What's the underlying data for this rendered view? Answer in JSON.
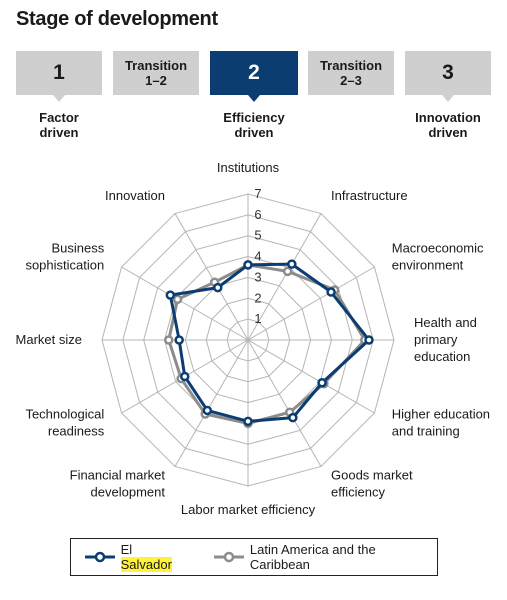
{
  "title": "Stage of development",
  "stages": {
    "s1": {
      "label": "1"
    },
    "t12": {
      "line1": "Transition",
      "line2": "1–2"
    },
    "s2": {
      "label": "2"
    },
    "t23": {
      "line1": "Transition",
      "line2": "2–3"
    },
    "s3": {
      "label": "3"
    }
  },
  "stage_labels": {
    "factor": {
      "line1": "Factor",
      "line2": "driven"
    },
    "efficiency": {
      "line1": "Efficiency",
      "line2": "driven"
    },
    "innovation": {
      "line1": "Innovation",
      "line2": "driven"
    }
  },
  "colors": {
    "active": "#0b3d73",
    "inactive": "#cfcfcf",
    "series1": "#0b3d73",
    "series2": "#8c8c8c",
    "grid": "#b5b5b5"
  },
  "legend": {
    "series1_prefix": "El ",
    "series1_highlight": "Salvador",
    "series2": "Latin America and the Caribbean"
  },
  "chart_data": {
    "type": "radar",
    "rmin": 1,
    "rmax": 7,
    "ticks": [
      "1",
      "2",
      "3",
      "4",
      "5",
      "6",
      "7"
    ],
    "axes": [
      [
        "Institutions"
      ],
      [
        "Infrastructure"
      ],
      [
        "Macroeconomic",
        "environment"
      ],
      [
        "Health and",
        "primary",
        "education"
      ],
      [
        "Higher education",
        "and training"
      ],
      [
        "Goods market",
        "efficiency"
      ],
      [
        "Labor market efficiency"
      ],
      [
        "Financial market",
        "development"
      ],
      [
        "Technological",
        "readiness"
      ],
      [
        "Market size"
      ],
      [
        "Business",
        "sophistication"
      ],
      [
        "Innovation"
      ]
    ],
    "series": [
      {
        "name": "El Salvador",
        "values": [
          3.6,
          4.2,
          4.6,
          5.8,
          4.1,
          4.3,
          3.9,
          3.9,
          3.5,
          3.3,
          4.3,
          2.9
        ]
      },
      {
        "name": "Latin America and the Caribbean",
        "values": [
          3.6,
          3.8,
          4.8,
          5.6,
          4.2,
          4.0,
          4.0,
          4.1,
          3.7,
          3.8,
          3.9,
          3.2
        ]
      }
    ]
  }
}
